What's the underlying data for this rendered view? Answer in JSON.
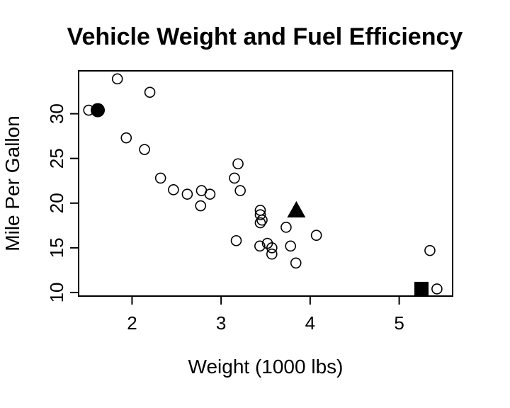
{
  "chart_data": {
    "type": "scatter",
    "title": "Vehicle Weight and Fuel Efficiency",
    "xlabel": "Weight (1000 lbs)",
    "ylabel": "Mile Per Gallon",
    "xlim": [
      1.4,
      5.6
    ],
    "ylim": [
      9.6,
      34.8
    ],
    "xticks": [
      2,
      3,
      4,
      5
    ],
    "yticks": [
      10,
      15,
      20,
      25,
      30
    ],
    "grid": false,
    "points": [
      {
        "x": 1.513,
        "y": 30.4
      },
      {
        "x": 1.835,
        "y": 33.9
      },
      {
        "x": 1.935,
        "y": 27.3
      },
      {
        "x": 2.14,
        "y": 26.0
      },
      {
        "x": 2.2,
        "y": 32.4
      },
      {
        "x": 2.32,
        "y": 22.8
      },
      {
        "x": 2.465,
        "y": 21.5
      },
      {
        "x": 2.62,
        "y": 21.0
      },
      {
        "x": 2.77,
        "y": 19.7
      },
      {
        "x": 2.78,
        "y": 21.4
      },
      {
        "x": 2.875,
        "y": 21.0
      },
      {
        "x": 3.15,
        "y": 22.8
      },
      {
        "x": 3.17,
        "y": 15.8
      },
      {
        "x": 3.19,
        "y": 24.4
      },
      {
        "x": 3.215,
        "y": 21.4
      },
      {
        "x": 3.435,
        "y": 15.2
      },
      {
        "x": 3.44,
        "y": 18.7
      },
      {
        "x": 3.44,
        "y": 19.2
      },
      {
        "x": 3.44,
        "y": 17.8
      },
      {
        "x": 3.46,
        "y": 18.1
      },
      {
        "x": 3.52,
        "y": 15.5
      },
      {
        "x": 3.57,
        "y": 14.3
      },
      {
        "x": 3.57,
        "y": 15.0
      },
      {
        "x": 3.73,
        "y": 17.3
      },
      {
        "x": 3.78,
        "y": 15.2
      },
      {
        "x": 3.84,
        "y": 13.3
      },
      {
        "x": 4.07,
        "y": 16.4
      },
      {
        "x": 5.345,
        "y": 14.7
      },
      {
        "x": 5.424,
        "y": 10.4
      }
    ],
    "highlighted_points": [
      {
        "x": 1.615,
        "y": 30.4,
        "marker": "filled-circle"
      },
      {
        "x": 3.845,
        "y": 19.2,
        "marker": "filled-triangle"
      },
      {
        "x": 5.25,
        "y": 10.4,
        "marker": "filled-square"
      }
    ],
    "colors": {
      "marker": "#000000",
      "background": "#ffffff"
    }
  }
}
